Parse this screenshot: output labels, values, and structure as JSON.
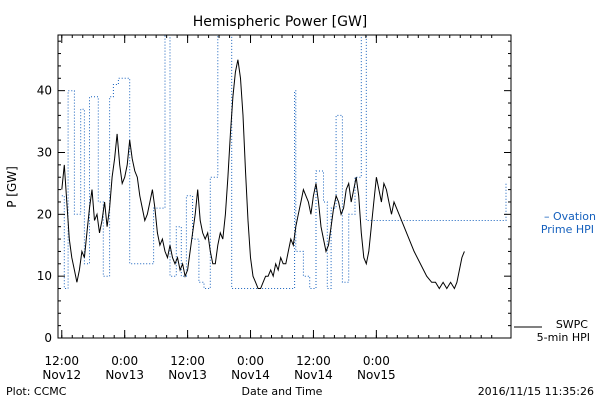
{
  "chart_data": {
    "type": "line",
    "title": "Hemispheric Power [GW]",
    "xlabel": "Date and Time",
    "ylabel": "P [GW]",
    "xlim": [
      -0.03,
      3.57
    ],
    "ylim": [
      0,
      49
    ],
    "yticks": [
      0,
      10,
      20,
      30,
      40
    ],
    "xticks": [
      {
        "x": 0,
        "time": "12:00",
        "day": "Nov12"
      },
      {
        "x": 0.5,
        "time": "0:00",
        "day": "Nov13"
      },
      {
        "x": 1,
        "time": "12:00",
        "day": "Nov13"
      },
      {
        "x": 1.5,
        "time": "0:00",
        "day": "Nov14"
      },
      {
        "x": 2,
        "time": "12:00",
        "day": "Nov14"
      },
      {
        "x": 2.5,
        "time": "0:00",
        "day": "Nov15"
      }
    ],
    "legend": [
      {
        "series": "swpc",
        "line1": "SWPC",
        "line2": "5-min HPI"
      },
      {
        "series": "ovation",
        "line1": "– Ovation",
        "line2": "Prime HPI"
      }
    ],
    "series": [
      {
        "key": "ovation",
        "color": "#1560bd",
        "style": "dotted",
        "step": true,
        "points": [
          [
            0.0,
            23
          ],
          [
            0.02,
            8
          ],
          [
            0.05,
            40
          ],
          [
            0.1,
            20
          ],
          [
            0.15,
            37
          ],
          [
            0.18,
            12
          ],
          [
            0.22,
            39
          ],
          [
            0.29,
            22
          ],
          [
            0.33,
            10
          ],
          [
            0.38,
            39
          ],
          [
            0.41,
            41
          ],
          [
            0.45,
            42
          ],
          [
            0.54,
            12
          ],
          [
            0.7,
            12
          ],
          [
            0.73,
            21
          ],
          [
            0.82,
            49
          ],
          [
            0.86,
            10
          ],
          [
            0.91,
            18
          ],
          [
            0.95,
            10
          ],
          [
            0.99,
            23
          ],
          [
            1.04,
            16
          ],
          [
            1.09,
            9
          ],
          [
            1.13,
            8
          ],
          [
            1.18,
            26
          ],
          [
            1.24,
            49
          ],
          [
            1.35,
            8
          ],
          [
            1.43,
            8
          ],
          [
            1.5,
            8
          ],
          [
            1.58,
            8
          ],
          [
            1.85,
            40
          ],
          [
            1.86,
            14
          ],
          [
            1.92,
            10
          ],
          [
            1.97,
            8
          ],
          [
            2.02,
            27
          ],
          [
            2.08,
            22
          ],
          [
            2.11,
            8
          ],
          [
            2.14,
            21
          ],
          [
            2.18,
            36
          ],
          [
            2.23,
            9
          ],
          [
            2.28,
            20
          ],
          [
            2.33,
            26
          ],
          [
            2.38,
            49
          ],
          [
            2.42,
            19
          ],
          [
            2.57,
            19
          ],
          [
            2.58,
            19
          ],
          [
            3.53,
            25
          ]
        ]
      },
      {
        "key": "swpc",
        "color": "#000000",
        "style": "solid",
        "step": false,
        "points": [
          [
            0.0,
            24
          ],
          [
            0.02,
            28
          ],
          [
            0.04,
            22
          ],
          [
            0.06,
            16
          ],
          [
            0.08,
            13
          ],
          [
            0.1,
            11
          ],
          [
            0.12,
            9
          ],
          [
            0.14,
            11
          ],
          [
            0.16,
            14
          ],
          [
            0.18,
            13
          ],
          [
            0.2,
            17
          ],
          [
            0.22,
            21
          ],
          [
            0.24,
            24
          ],
          [
            0.26,
            19
          ],
          [
            0.28,
            20
          ],
          [
            0.3,
            17
          ],
          [
            0.32,
            19
          ],
          [
            0.34,
            22
          ],
          [
            0.36,
            18
          ],
          [
            0.38,
            21
          ],
          [
            0.4,
            26
          ],
          [
            0.42,
            29
          ],
          [
            0.44,
            33
          ],
          [
            0.46,
            28
          ],
          [
            0.48,
            25
          ],
          [
            0.5,
            26
          ],
          [
            0.52,
            28
          ],
          [
            0.54,
            32
          ],
          [
            0.56,
            29
          ],
          [
            0.58,
            27
          ],
          [
            0.6,
            26
          ],
          [
            0.62,
            23
          ],
          [
            0.64,
            21
          ],
          [
            0.66,
            19
          ],
          [
            0.68,
            20
          ],
          [
            0.7,
            22
          ],
          [
            0.72,
            24
          ],
          [
            0.74,
            21
          ],
          [
            0.76,
            17
          ],
          [
            0.78,
            15
          ],
          [
            0.8,
            16
          ],
          [
            0.82,
            14
          ],
          [
            0.84,
            13
          ],
          [
            0.86,
            15
          ],
          [
            0.88,
            13
          ],
          [
            0.9,
            12
          ],
          [
            0.92,
            13
          ],
          [
            0.94,
            11
          ],
          [
            0.96,
            12
          ],
          [
            0.98,
            10
          ],
          [
            1.0,
            11
          ],
          [
            1.02,
            14
          ],
          [
            1.04,
            17
          ],
          [
            1.06,
            20
          ],
          [
            1.08,
            24
          ],
          [
            1.1,
            19
          ],
          [
            1.12,
            17
          ],
          [
            1.14,
            16
          ],
          [
            1.16,
            17
          ],
          [
            1.18,
            14
          ],
          [
            1.2,
            12
          ],
          [
            1.22,
            12
          ],
          [
            1.24,
            15
          ],
          [
            1.26,
            17
          ],
          [
            1.28,
            16
          ],
          [
            1.3,
            20
          ],
          [
            1.32,
            26
          ],
          [
            1.34,
            33
          ],
          [
            1.36,
            39
          ],
          [
            1.38,
            43
          ],
          [
            1.4,
            45
          ],
          [
            1.42,
            42
          ],
          [
            1.44,
            36
          ],
          [
            1.46,
            27
          ],
          [
            1.48,
            19
          ],
          [
            1.5,
            13
          ],
          [
            1.52,
            10
          ],
          [
            1.54,
            9
          ],
          [
            1.56,
            8
          ],
          [
            1.58,
            8
          ],
          [
            1.6,
            9
          ],
          [
            1.62,
            10
          ],
          [
            1.64,
            10
          ],
          [
            1.66,
            11
          ],
          [
            1.68,
            10
          ],
          [
            1.7,
            12
          ],
          [
            1.72,
            11
          ],
          [
            1.74,
            13
          ],
          [
            1.76,
            12
          ],
          [
            1.78,
            12
          ],
          [
            1.8,
            14
          ],
          [
            1.82,
            16
          ],
          [
            1.84,
            15
          ],
          [
            1.86,
            18
          ],
          [
            1.88,
            20
          ],
          [
            1.9,
            22
          ],
          [
            1.92,
            24
          ],
          [
            1.94,
            23
          ],
          [
            1.96,
            22
          ],
          [
            1.98,
            20
          ],
          [
            2.0,
            23
          ],
          [
            2.02,
            25
          ],
          [
            2.04,
            22
          ],
          [
            2.06,
            18
          ],
          [
            2.08,
            16
          ],
          [
            2.1,
            14
          ],
          [
            2.12,
            15
          ],
          [
            2.14,
            18
          ],
          [
            2.16,
            21
          ],
          [
            2.18,
            23
          ],
          [
            2.2,
            22
          ],
          [
            2.22,
            20
          ],
          [
            2.24,
            21
          ],
          [
            2.26,
            24
          ],
          [
            2.28,
            25
          ],
          [
            2.3,
            22
          ],
          [
            2.32,
            24
          ],
          [
            2.34,
            26
          ],
          [
            2.36,
            23
          ],
          [
            2.38,
            17
          ],
          [
            2.4,
            13
          ],
          [
            2.42,
            12
          ],
          [
            2.44,
            14
          ],
          [
            2.46,
            18
          ],
          [
            2.48,
            22
          ],
          [
            2.5,
            26
          ],
          [
            2.52,
            24
          ],
          [
            2.54,
            22
          ],
          [
            2.56,
            25
          ],
          [
            2.58,
            24
          ],
          [
            2.6,
            22
          ],
          [
            2.62,
            20
          ],
          [
            2.64,
            22
          ],
          [
            2.66,
            21
          ],
          [
            2.8,
            14
          ],
          [
            2.9,
            10
          ],
          [
            2.94,
            9
          ],
          [
            2.97,
            9
          ],
          [
            3.0,
            8
          ],
          [
            3.03,
            9
          ],
          [
            3.06,
            8
          ],
          [
            3.09,
            9
          ],
          [
            3.12,
            8
          ],
          [
            3.14,
            9
          ],
          [
            3.18,
            13
          ],
          [
            3.2,
            14
          ]
        ]
      }
    ]
  },
  "footer": {
    "left": "Plot: CCMC",
    "right": "2016/11/15 11:35:26"
  }
}
